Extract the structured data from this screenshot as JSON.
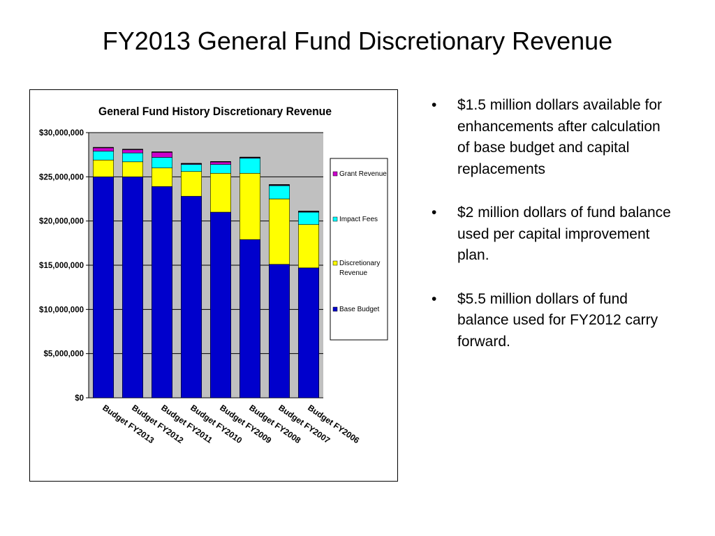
{
  "slide": {
    "title": "FY2013 General Fund Discretionary Revenue",
    "bullets": [
      "$1.5 million dollars available for enhancements after calculation of base budget and capital replacements",
      "$2  million dollars of fund balance used per capital improvement plan.",
      "$5.5  million dollars of fund balance used for FY2012 carry forward."
    ],
    "bullet_glyph": "•"
  },
  "chart_data": {
    "type": "bar",
    "stacked": true,
    "title": "General Fund History Discretionary Revenue",
    "xlabel": "",
    "ylabel": "",
    "ylim": [
      0,
      30000000
    ],
    "ytick_labels": [
      "$0",
      "$5,000,000",
      "$10,000,000",
      "$15,000,000",
      "$20,000,000",
      "$25,000,000",
      "$30,000,000"
    ],
    "categories": [
      "Budget FY2013",
      "Budget FY2012",
      "Budget FY2011",
      "Budget FY2010",
      "Budget FY2009",
      "Budget FY2008",
      "Budget FY2007",
      "Budget FY2006"
    ],
    "series": [
      {
        "name": "Base Budget",
        "color": "#0000cc",
        "values": [
          25000000,
          25000000,
          23900000,
          22800000,
          21000000,
          17900000,
          15100000,
          14700000
        ]
      },
      {
        "name": "Discretionary Revenue",
        "color": "#ffff00",
        "values": [
          1900000,
          1700000,
          2100000,
          2800000,
          4400000,
          7500000,
          7400000,
          4900000
        ]
      },
      {
        "name": "Impact Fees",
        "color": "#00ffff",
        "values": [
          1000000,
          1000000,
          1200000,
          800000,
          1000000,
          1700000,
          1500000,
          1400000
        ]
      },
      {
        "name": "Grant Revenue",
        "color": "#cc00cc",
        "values": [
          400000,
          400000,
          600000,
          100000,
          300000,
          100000,
          100000,
          100000
        ]
      }
    ],
    "legend_order": [
      "Grant Revenue",
      "Impact Fees",
      "Discretionary Revenue",
      "Base Budget"
    ],
    "legend_position": "right",
    "grid": true,
    "plot_background": "#c0c0c0"
  }
}
